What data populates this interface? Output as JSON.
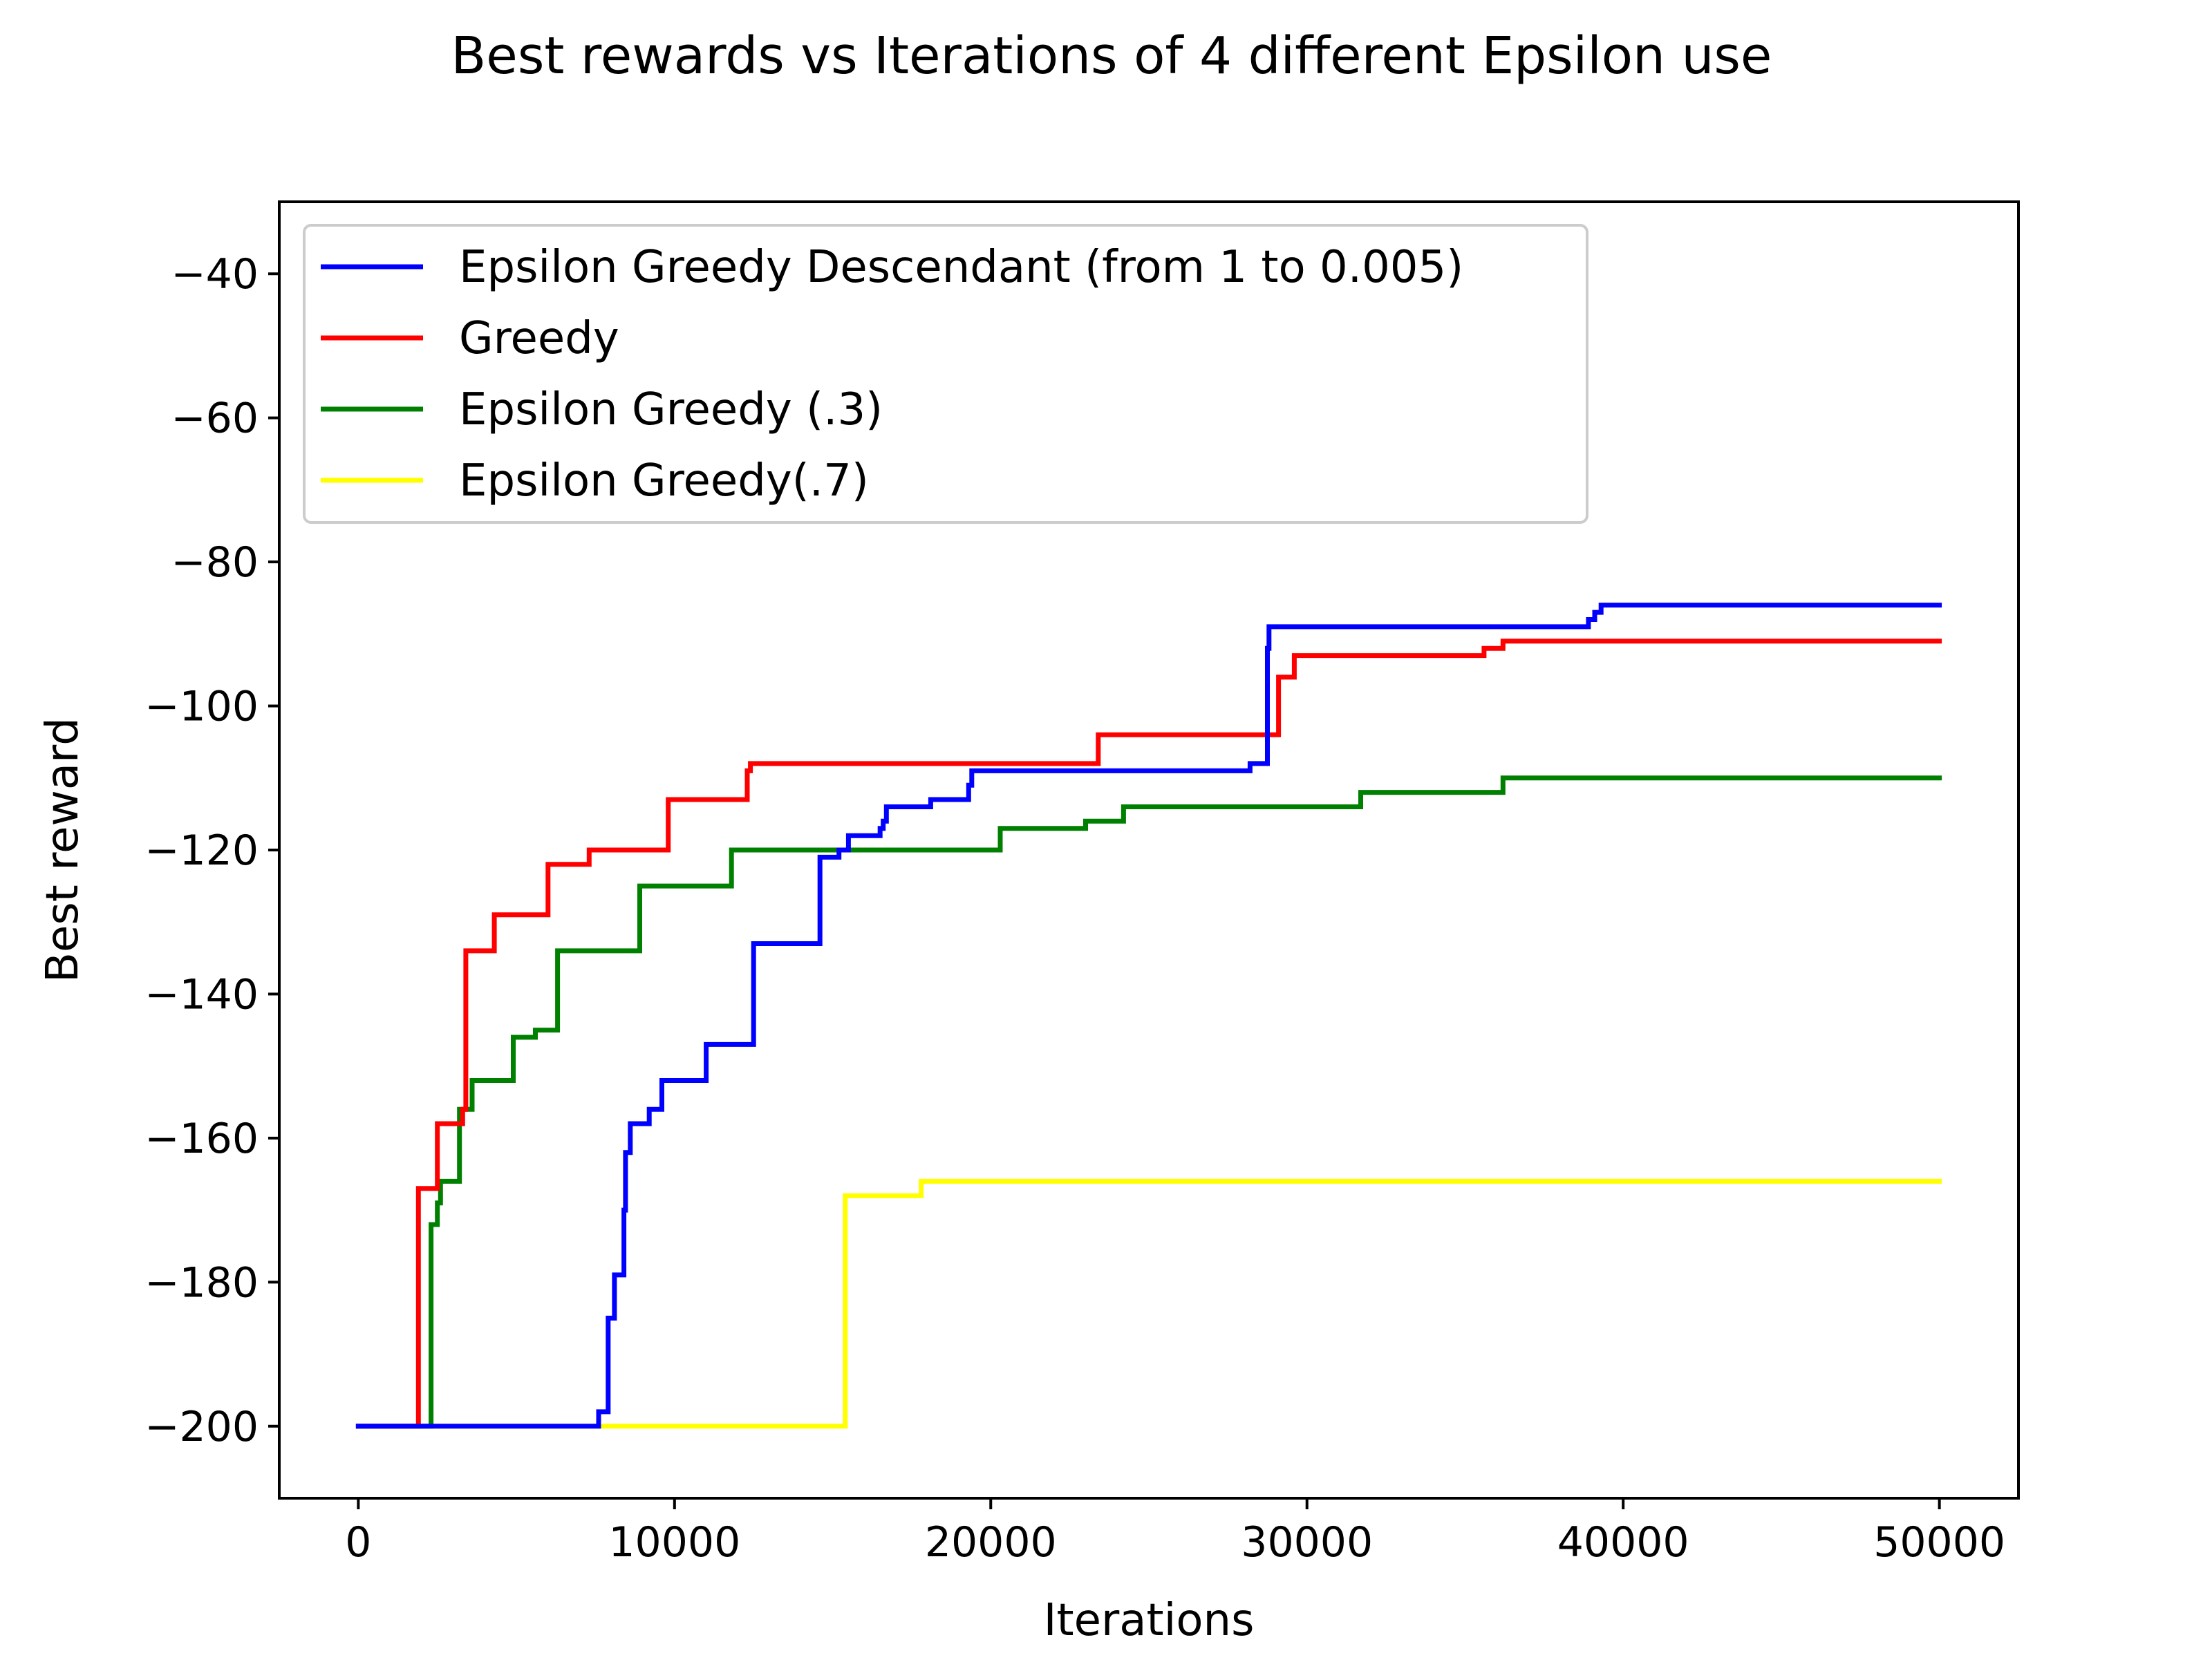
{
  "chart_data": {
    "type": "line",
    "title": "Best rewards vs Iterations of 4 different Epsilon use",
    "xlabel": "Iterations",
    "ylabel": "Best reward",
    "xlim": [
      -2500,
      52500
    ],
    "ylim": [
      -210,
      -30
    ],
    "xticks": [
      0,
      10000,
      20000,
      30000,
      40000,
      50000
    ],
    "xtick_labels": [
      "0",
      "10000",
      "20000",
      "30000",
      "40000",
      "50000"
    ],
    "yticks": [
      -40,
      -60,
      -80,
      -100,
      -120,
      -140,
      -160,
      -180,
      -200
    ],
    "ytick_labels": [
      "−40",
      "−60",
      "−80",
      "−100",
      "−120",
      "−140",
      "−160",
      "−180",
      "−200"
    ],
    "grid": false,
    "legend_position": "upper-left",
    "series": [
      {
        "name": "Epsilon Greedy Descendant (from 1 to 0.005)",
        "color": "#0000ff",
        "step": true,
        "points": [
          [
            0,
            -200
          ],
          [
            7600,
            -198
          ],
          [
            7900,
            -185
          ],
          [
            8100,
            -179
          ],
          [
            8400,
            -170
          ],
          [
            8450,
            -162
          ],
          [
            8600,
            -158
          ],
          [
            9200,
            -156
          ],
          [
            9600,
            -152
          ],
          [
            11000,
            -147
          ],
          [
            12500,
            -133
          ],
          [
            14600,
            -121
          ],
          [
            15200,
            -120
          ],
          [
            15500,
            -118
          ],
          [
            16500,
            -117
          ],
          [
            16600,
            -116
          ],
          [
            16700,
            -114
          ],
          [
            18100,
            -113
          ],
          [
            19300,
            -111
          ],
          [
            19400,
            -109
          ],
          [
            28200,
            -108
          ],
          [
            28750,
            -92
          ],
          [
            28800,
            -89
          ],
          [
            38900,
            -88
          ],
          [
            39100,
            -87
          ],
          [
            39300,
            -86
          ],
          [
            50000,
            -86
          ]
        ]
      },
      {
        "name": "Greedy",
        "color": "#ff0000",
        "step": true,
        "points": [
          [
            0,
            -200
          ],
          [
            1900,
            -167
          ],
          [
            2500,
            -158
          ],
          [
            3300,
            -156
          ],
          [
            3400,
            -134
          ],
          [
            4300,
            -129
          ],
          [
            6000,
            -122
          ],
          [
            7300,
            -120
          ],
          [
            9800,
            -113
          ],
          [
            12300,
            -109
          ],
          [
            12400,
            -108
          ],
          [
            23400,
            -104
          ],
          [
            29100,
            -96
          ],
          [
            29600,
            -93
          ],
          [
            35600,
            -92
          ],
          [
            36200,
            -91
          ],
          [
            50000,
            -91
          ]
        ]
      },
      {
        "name": "Epsilon Greedy (.3)",
        "color": "#008000",
        "step": true,
        "points": [
          [
            0,
            -200
          ],
          [
            2300,
            -172
          ],
          [
            2500,
            -169
          ],
          [
            2600,
            -166
          ],
          [
            3200,
            -156
          ],
          [
            3600,
            -152
          ],
          [
            4900,
            -146
          ],
          [
            5600,
            -145
          ],
          [
            6300,
            -134
          ],
          [
            8900,
            -125
          ],
          [
            11800,
            -120
          ],
          [
            20300,
            -117
          ],
          [
            23000,
            -116
          ],
          [
            24200,
            -114
          ],
          [
            31700,
            -112
          ],
          [
            36200,
            -110
          ],
          [
            50000,
            -110
          ]
        ]
      },
      {
        "name": "Epsilon Greedy(.7)",
        "color": "#ffff00",
        "step": true,
        "points": [
          [
            0,
            -200
          ],
          [
            15400,
            -168
          ],
          [
            17800,
            -166
          ],
          [
            50000,
            -166
          ]
        ]
      }
    ]
  }
}
